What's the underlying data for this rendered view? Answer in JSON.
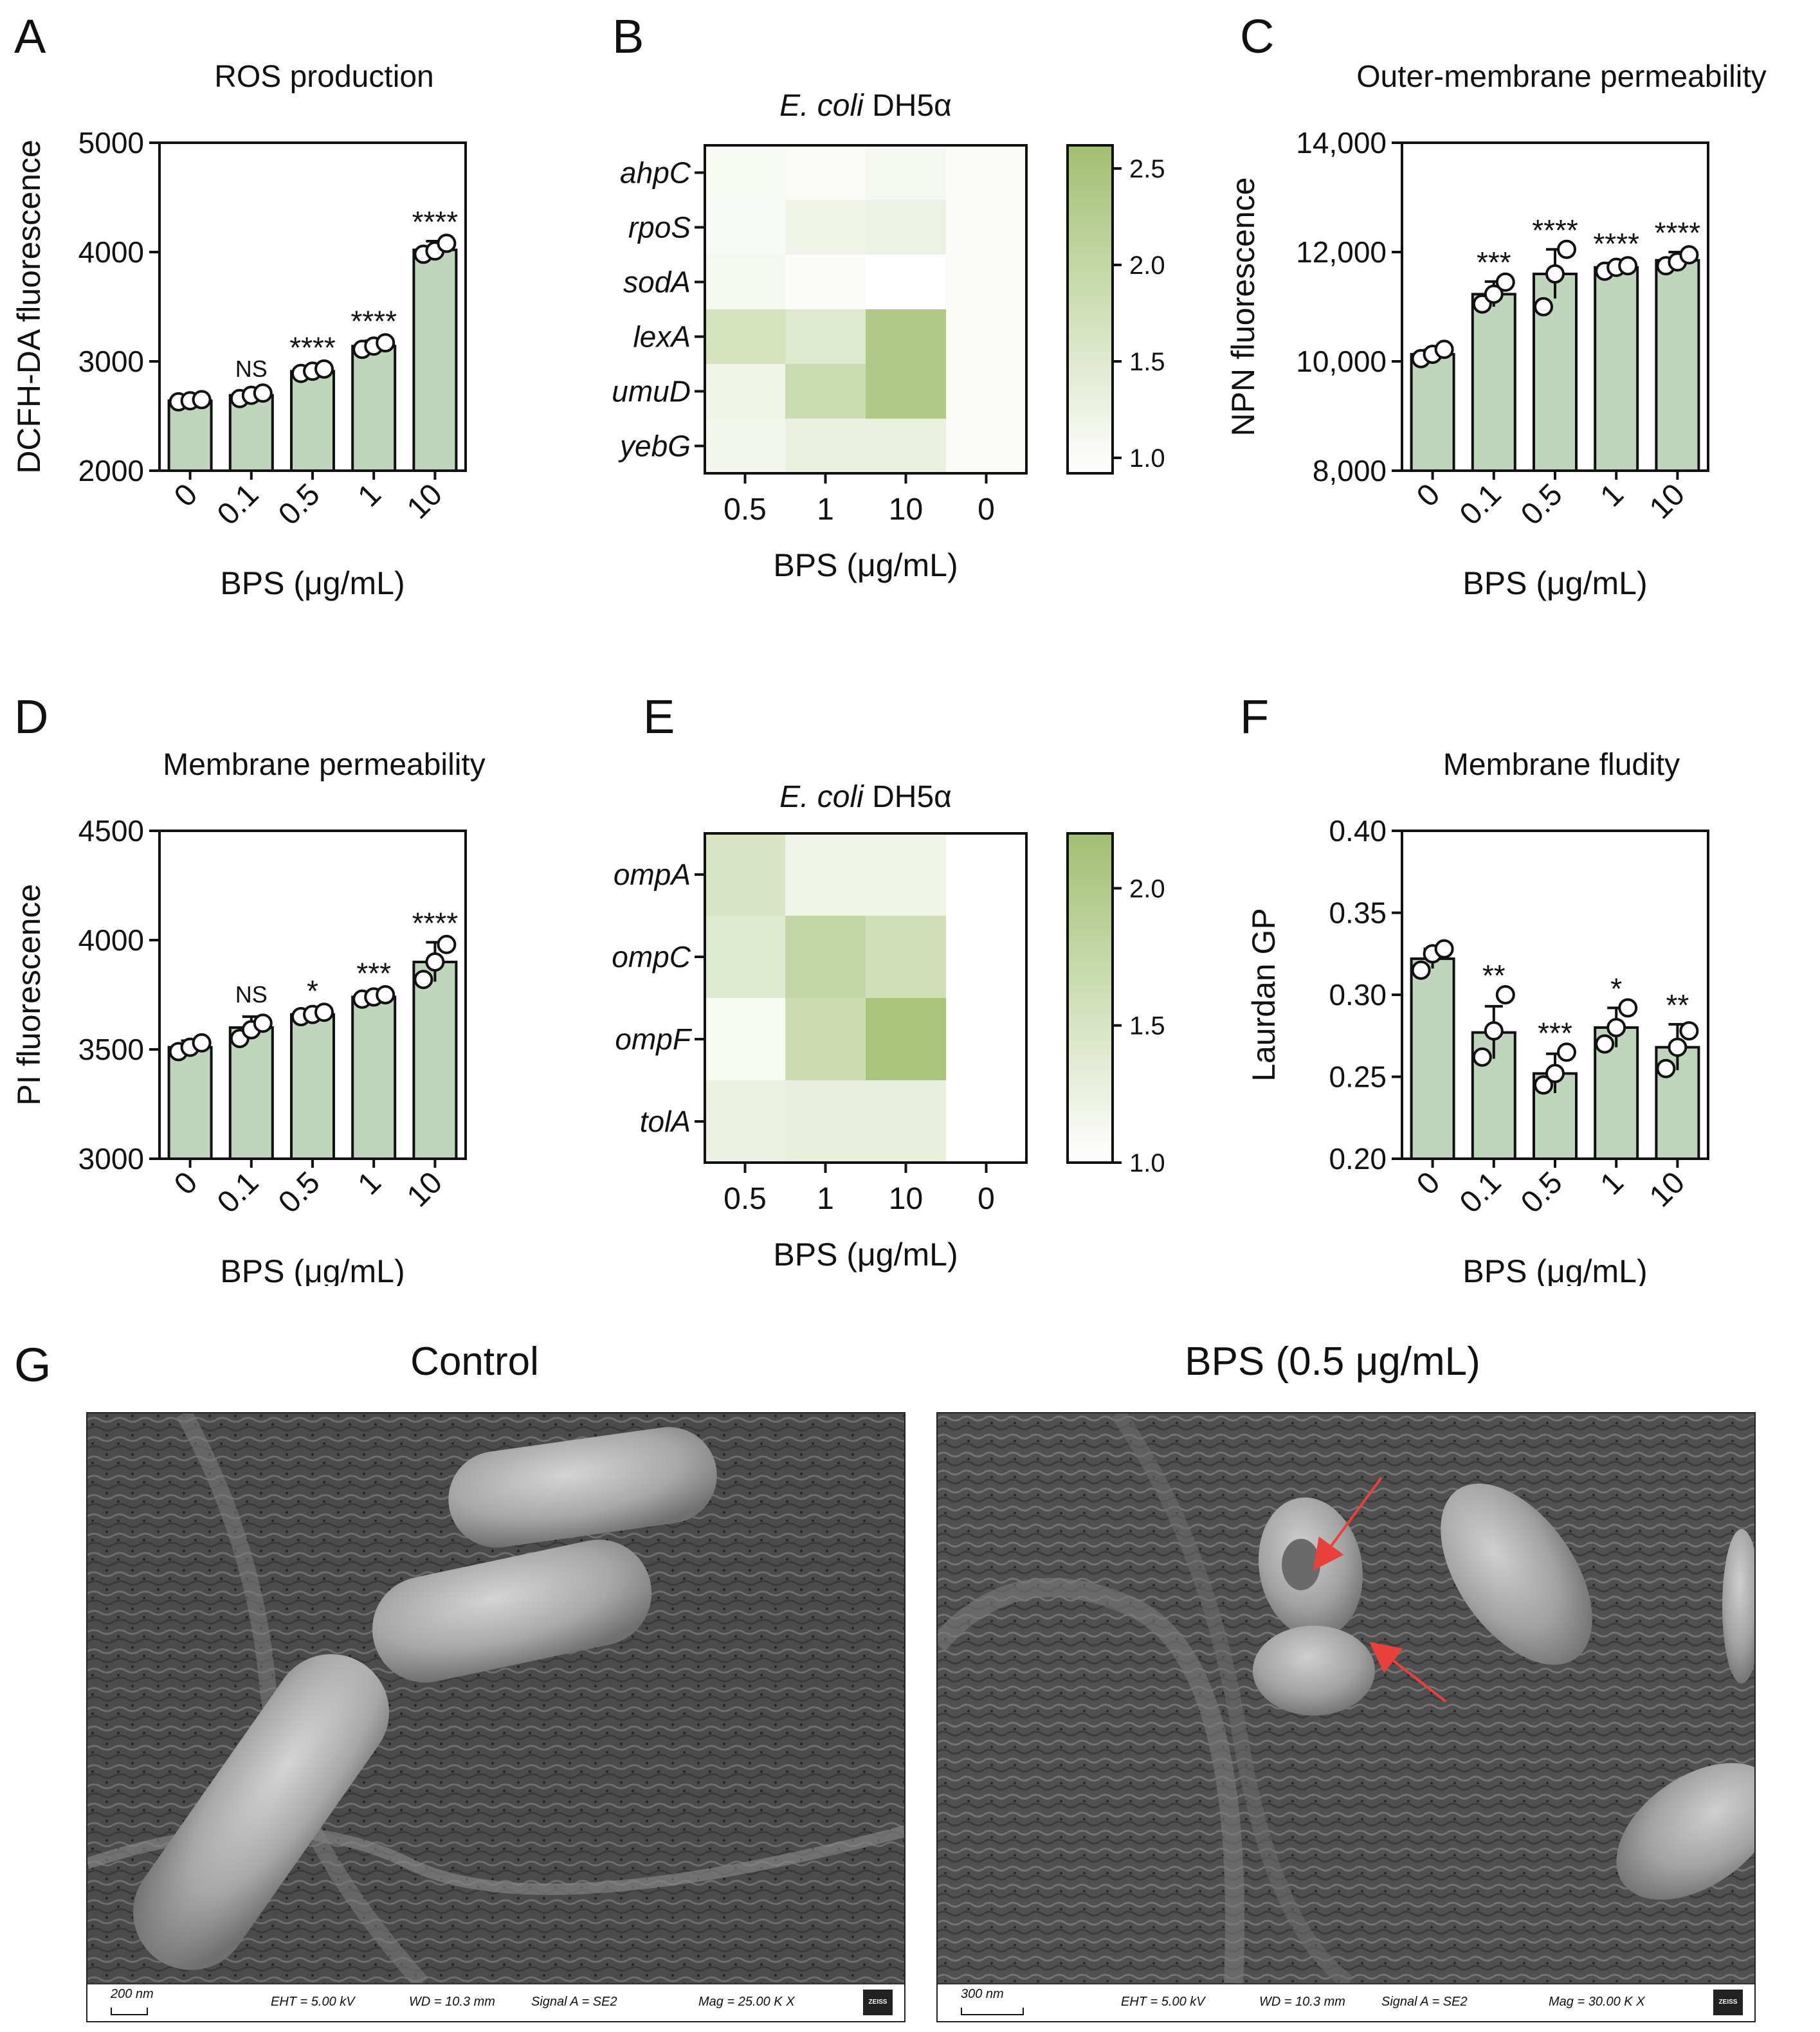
{
  "panel_letters": {
    "a": "A",
    "b": "B",
    "c": "C",
    "d": "D",
    "e": "E",
    "f": "F",
    "g": "G"
  },
  "chart_data": [
    {
      "id": "A",
      "type": "bar",
      "title": "ROS production",
      "xlabel": "BPS (μg/mL)",
      "ylabel": "DCFH-DA fluorescence",
      "categories": [
        "0",
        "0.1",
        "0.5",
        "1",
        "10"
      ],
      "values": [
        2640,
        2690,
        2910,
        3140,
        4020
      ],
      "errors": [
        30,
        40,
        40,
        50,
        80
      ],
      "points": [
        [
          2630,
          2640,
          2650
        ],
        [
          2660,
          2690,
          2710
        ],
        [
          2890,
          2910,
          2930
        ],
        [
          3110,
          3140,
          3170
        ],
        [
          3980,
          4010,
          4080
        ]
      ],
      "significance": [
        "",
        "NS",
        "****",
        "****",
        "****"
      ],
      "ylim": [
        2000,
        5000
      ],
      "yticks": [
        2000,
        3000,
        4000,
        5000
      ],
      "ytick_labels": [
        "2000",
        "3000",
        "4000",
        "5000"
      ],
      "bar_color": "#bfd6bc"
    },
    {
      "id": "B",
      "type": "heatmap",
      "title_italic": "E. coli",
      "title_rest": " DH5α",
      "xlabel": "BPS (μg/mL)",
      "columns": [
        "0.5",
        "1",
        "10",
        "0"
      ],
      "rows": [
        "ahpC",
        "rpoS",
        "sodA",
        "lexA",
        "umuD",
        "yebG"
      ],
      "values": [
        [
          1.05,
          1.02,
          1.1,
          1.0
        ],
        [
          1.04,
          1.2,
          1.25,
          1.0
        ],
        [
          1.1,
          1.0,
          0.92,
          1.0
        ],
        [
          1.7,
          1.5,
          2.35,
          1.0
        ],
        [
          1.2,
          1.85,
          2.35,
          1.0
        ],
        [
          1.15,
          1.3,
          1.3,
          1.0
        ]
      ],
      "colorbar": {
        "min": 0.92,
        "max": 2.62,
        "ticks": [
          1.0,
          1.5,
          2.0,
          2.5
        ],
        "tick_labels": [
          "1.0",
          "1.5",
          "2.0",
          "2.5"
        ]
      },
      "color_low": "#ffffff",
      "color_high": "#a2bf72"
    },
    {
      "id": "C",
      "type": "bar",
      "title": "Outer-membrane permeability",
      "xlabel": "BPS (μg/mL)",
      "ylabel": "NPN fluorescence",
      "categories": [
        "0",
        "0.1",
        "0.5",
        "1",
        "10"
      ],
      "values": [
        10130,
        11230,
        11600,
        11720,
        11850
      ],
      "errors": [
        80,
        230,
        450,
        80,
        150
      ],
      "points": [
        [
          10050,
          10130,
          10220
        ],
        [
          11050,
          11230,
          11450
        ],
        [
          11000,
          11600,
          12050
        ],
        [
          11650,
          11720,
          11750
        ],
        [
          11750,
          11820,
          11950
        ]
      ],
      "significance": [
        "",
        "***",
        "****",
        "****",
        "****"
      ],
      "ylim": [
        8000,
        14000
      ],
      "yticks": [
        8000,
        10000,
        12000,
        14000
      ],
      "ytick_labels": [
        "8,000",
        "10,000",
        "12,000",
        "14,000"
      ],
      "bar_color": "#bfd6bc"
    },
    {
      "id": "D",
      "type": "bar",
      "title": "Membrane permeability",
      "xlabel": "BPS (μg/mL)",
      "ylabel": "PI fluorescence",
      "categories": [
        "0",
        "0.1",
        "0.5",
        "1",
        "10"
      ],
      "values": [
        3510,
        3600,
        3660,
        3740,
        3900
      ],
      "errors": [
        30,
        50,
        20,
        20,
        90
      ],
      "points": [
        [
          3490,
          3510,
          3530
        ],
        [
          3550,
          3590,
          3620
        ],
        [
          3650,
          3660,
          3670
        ],
        [
          3730,
          3740,
          3750
        ],
        [
          3820,
          3900,
          3980
        ]
      ],
      "significance": [
        "",
        "NS",
        "*",
        "***",
        "****"
      ],
      "ylim": [
        3000,
        4500
      ],
      "yticks": [
        3000,
        3500,
        4000,
        4500
      ],
      "ytick_labels": [
        "3000",
        "3500",
        "4000",
        "4500"
      ],
      "bar_color": "#bfd6bc"
    },
    {
      "id": "E",
      "type": "heatmap",
      "title_italic": "E. coli",
      "title_rest": " DH5α",
      "xlabel": "BPS (μg/mL)",
      "columns": [
        "0.5",
        "1",
        "10",
        "0"
      ],
      "rows": [
        "ompA",
        "ompC",
        "ompF",
        "tolA"
      ],
      "values": [
        [
          1.5,
          1.2,
          1.2,
          1.0
        ],
        [
          1.4,
          1.75,
          1.6,
          1.0
        ],
        [
          1.1,
          1.65,
          2.1,
          1.0
        ],
        [
          1.25,
          1.3,
          1.3,
          1.0
        ]
      ],
      "colorbar": {
        "min": 1.0,
        "max": 2.2,
        "ticks": [
          1.0,
          1.5,
          2.0
        ],
        "tick_labels": [
          "1.0",
          "1.5",
          "2.0"
        ]
      },
      "color_low": "#ffffff",
      "color_high": "#a2bf72"
    },
    {
      "id": "F",
      "type": "bar",
      "title": "Membrane fludity",
      "xlabel": "BPS (μg/mL)",
      "ylabel": "Laurdan GP",
      "categories": [
        "0",
        "0.1",
        "0.5",
        "1",
        "10"
      ],
      "values": [
        0.322,
        0.277,
        0.252,
        0.28,
        0.268
      ],
      "errors": [
        0.006,
        0.016,
        0.012,
        0.012,
        0.014
      ],
      "points": [
        [
          0.315,
          0.325,
          0.328
        ],
        [
          0.262,
          0.278,
          0.3
        ],
        [
          0.245,
          0.252,
          0.265
        ],
        [
          0.27,
          0.28,
          0.292
        ],
        [
          0.255,
          0.268,
          0.278
        ]
      ],
      "significance": [
        "",
        "**",
        "***",
        "*",
        "**"
      ],
      "ylim": [
        0.2,
        0.4
      ],
      "yticks": [
        0.2,
        0.25,
        0.3,
        0.35,
        0.4
      ],
      "ytick_labels": [
        "0.20",
        "0.25",
        "0.30",
        "0.35",
        "0.40"
      ],
      "bar_color": "#bfd6bc"
    }
  ],
  "sem": {
    "control_title": "Control",
    "bps_title": "BPS (0.5 μg/mL)",
    "control": {
      "scale": "200 nm",
      "eht": "EHT =  5.00 kV",
      "wd": "WD = 10.3 mm",
      "signal": "Signal A = SE2",
      "mag": "Mag =   25.00 K X",
      "logo": "ZEISS"
    },
    "bps": {
      "scale": "300 nm",
      "eht": "EHT =  5.00 kV",
      "wd": "WD = 10.3 mm",
      "signal": "Signal A = SE2",
      "mag": "Mag =   30.00 K X",
      "logo": "ZEISS"
    },
    "arrow_color": "#e8413c"
  }
}
